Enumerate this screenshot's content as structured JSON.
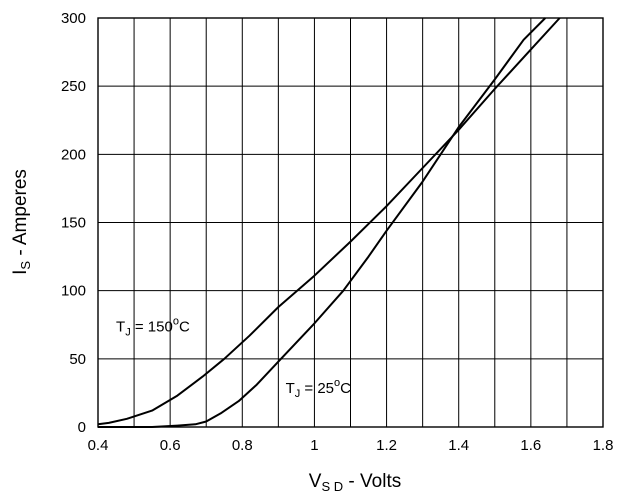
{
  "chart_data": {
    "type": "line",
    "title": "",
    "xlabel": {
      "main": "V",
      "sub": "S D",
      "rest": " - Volts"
    },
    "ylabel": {
      "main": "I",
      "sub": "S",
      "rest": " - Amperes"
    },
    "xlim": [
      0.4,
      1.8
    ],
    "ylim": [
      0,
      300
    ],
    "x_ticks": [
      0.4,
      0.5,
      0.6,
      0.7,
      0.8,
      0.9,
      1.0,
      1.1,
      1.2,
      1.3,
      1.4,
      1.5,
      1.6,
      1.7,
      1.8
    ],
    "x_tick_labels": [
      {
        "value": 0.4,
        "label": "0.4"
      },
      {
        "value": 0.6,
        "label": "0.6"
      },
      {
        "value": 0.8,
        "label": "0.8"
      },
      {
        "value": 1.0,
        "label": "1"
      },
      {
        "value": 1.2,
        "label": "1.2"
      },
      {
        "value": 1.4,
        "label": "1.4"
      },
      {
        "value": 1.6,
        "label": "1.6"
      },
      {
        "value": 1.8,
        "label": "1.8"
      }
    ],
    "y_ticks": [
      0,
      50,
      100,
      150,
      200,
      250,
      300
    ],
    "y_tick_labels": [
      {
        "value": 0,
        "label": "0"
      },
      {
        "value": 50,
        "label": "50"
      },
      {
        "value": 100,
        "label": "100"
      },
      {
        "value": 150,
        "label": "150"
      },
      {
        "value": 200,
        "label": "200"
      },
      {
        "value": 250,
        "label": "250"
      },
      {
        "value": 300,
        "label": "300"
      }
    ],
    "grid": true,
    "series": [
      {
        "name": "T_J = 150°C",
        "label": {
          "main": "T",
          "sub": "J",
          "mid": " = 150",
          "sup": "o",
          "end": "C"
        },
        "label_at": [
          0.45,
          70
        ],
        "color": "#000000",
        "x": [
          0.4,
          0.43,
          0.48,
          0.55,
          0.62,
          0.69,
          0.75,
          0.82,
          0.9,
          1.0,
          1.1,
          1.2,
          1.3,
          1.4,
          1.5,
          1.6,
          1.68
        ],
        "values": [
          2,
          3,
          6,
          12,
          23,
          37,
          50,
          67,
          88,
          111,
          136,
          162,
          190,
          218,
          248,
          277,
          300
        ]
      },
      {
        "name": "T_J = 25°C",
        "label": {
          "main": "T",
          "sub": "J",
          "mid": " = 25",
          "sup": "o",
          "end": "C"
        },
        "label_at": [
          0.92,
          25
        ],
        "color": "#000000",
        "x": [
          0.4,
          0.55,
          0.62,
          0.67,
          0.7,
          0.74,
          0.79,
          0.84,
          0.9,
          1.0,
          1.08,
          1.15,
          1.2,
          1.3,
          1.4,
          1.5,
          1.58,
          1.64
        ],
        "values": [
          0,
          0,
          1,
          2,
          4,
          10,
          19,
          31,
          48,
          76,
          100,
          125,
          144,
          180,
          220,
          255,
          284,
          300
        ]
      }
    ]
  }
}
